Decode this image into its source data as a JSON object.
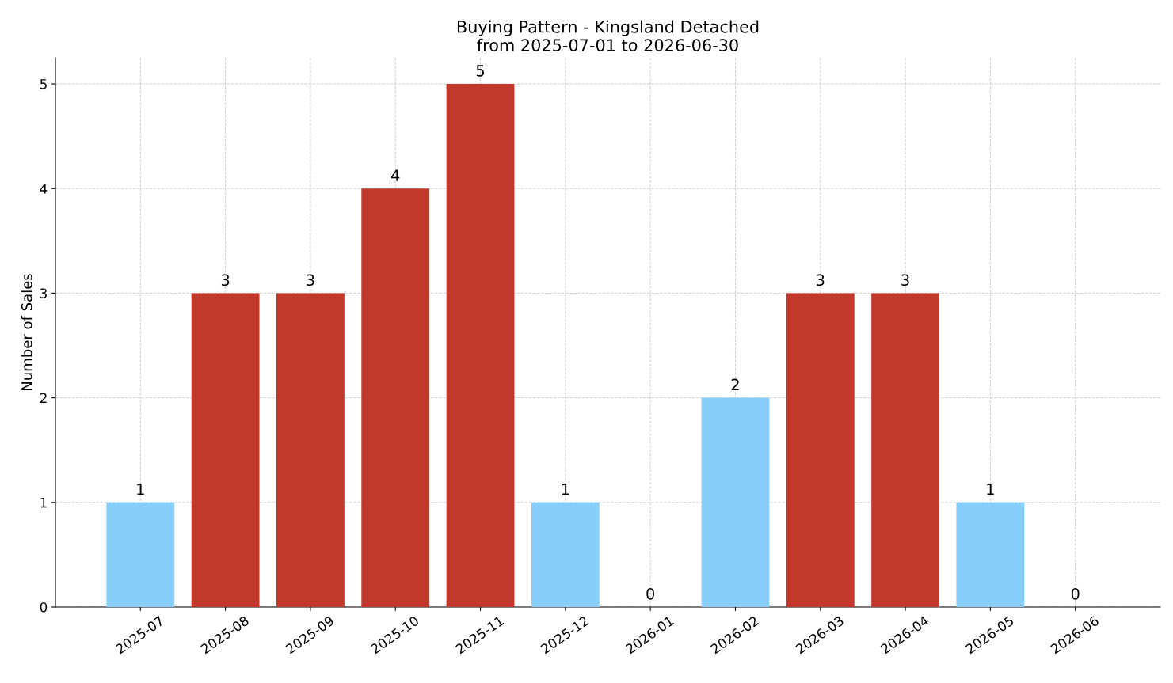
{
  "chart_data": {
    "type": "bar",
    "title": "Buying Pattern - Kingsland Detached\nfrom 2025-07-01 to 2026-06-30",
    "ylabel": "Number of Sales",
    "categories": [
      "2025-07",
      "2025-08",
      "2025-09",
      "2025-10",
      "2025-11",
      "2025-12",
      "2026-01",
      "2026-02",
      "2026-03",
      "2026-04",
      "2026-05",
      "2026-06"
    ],
    "values": [
      1,
      3,
      3,
      4,
      5,
      1,
      0,
      2,
      3,
      3,
      1,
      0
    ],
    "colors": [
      "#87cefa",
      "#c0392b",
      "#c0392b",
      "#c0392b",
      "#c0392b",
      "#87cefa",
      "#87cefa",
      "#87cefa",
      "#c0392b",
      "#c0392b",
      "#87cefa",
      "#87cefa"
    ],
    "ylim": [
      0,
      5.25
    ],
    "yticks": [
      0,
      1,
      2,
      3,
      4,
      5
    ],
    "grid": true,
    "data_labels": true
  }
}
